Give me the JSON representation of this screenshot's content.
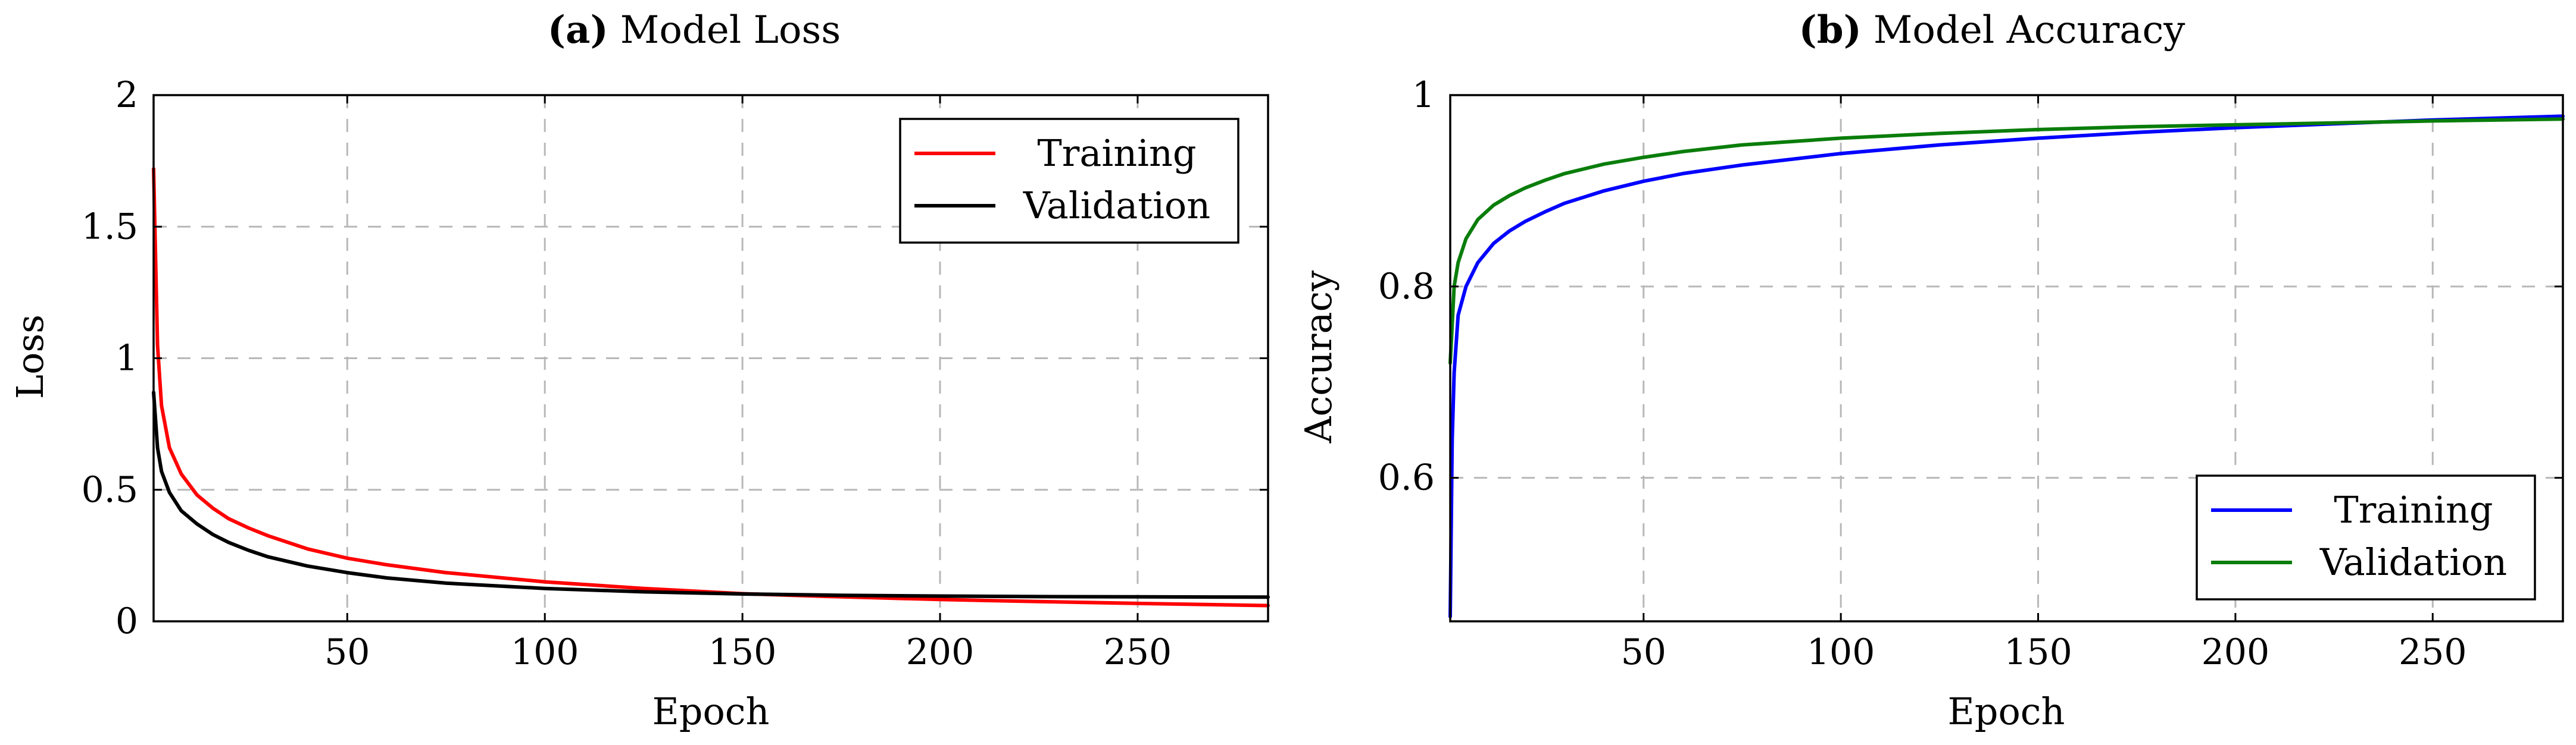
{
  "chart_data": [
    {
      "type": "line",
      "panel_label": "(a)",
      "title": "Model Loss",
      "xlabel": "Epoch",
      "ylabel": "Loss",
      "xlim": [
        1,
        283
      ],
      "ylim": [
        0,
        2
      ],
      "xticks": [
        50,
        100,
        150,
        200,
        250
      ],
      "xtick_labels": [
        "50",
        "100",
        "150",
        "200",
        "250"
      ],
      "yticks": [
        0,
        0.5,
        1,
        1.5,
        2
      ],
      "ytick_labels": [
        "0",
        "0.5",
        "1",
        "1.5",
        "2"
      ],
      "grid": true,
      "legend_position": "top-right",
      "series": [
        {
          "name": "Training",
          "color": "#ff0000",
          "x": [
            1,
            2,
            3,
            5,
            8,
            12,
            16,
            20,
            25,
            30,
            40,
            50,
            60,
            75,
            100,
            125,
            150,
            175,
            200,
            225,
            250,
            283
          ],
          "y": [
            1.72,
            1.05,
            0.82,
            0.66,
            0.56,
            0.48,
            0.43,
            0.39,
            0.355,
            0.325,
            0.275,
            0.24,
            0.215,
            0.185,
            0.15,
            0.125,
            0.105,
            0.093,
            0.083,
            0.075,
            0.068,
            0.06
          ]
        },
        {
          "name": "Validation",
          "color": "#000000",
          "x": [
            1,
            2,
            3,
            5,
            8,
            12,
            16,
            20,
            25,
            30,
            40,
            50,
            60,
            75,
            100,
            125,
            150,
            175,
            200,
            225,
            250,
            283
          ],
          "y": [
            0.87,
            0.66,
            0.57,
            0.49,
            0.42,
            0.37,
            0.33,
            0.3,
            0.27,
            0.245,
            0.21,
            0.185,
            0.165,
            0.145,
            0.125,
            0.112,
            0.104,
            0.099,
            0.096,
            0.094,
            0.093,
            0.092
          ]
        }
      ]
    },
    {
      "type": "line",
      "panel_label": "(b)",
      "title": "Model Accuracy",
      "xlabel": "Epoch",
      "ylabel": "Accuracy",
      "xlim": [
        1,
        283
      ],
      "ylim": [
        0.45,
        1
      ],
      "xticks": [
        50,
        100,
        150,
        200,
        250
      ],
      "xtick_labels": [
        "50",
        "100",
        "150",
        "200",
        "250"
      ],
      "yticks": [
        0.6,
        0.8,
        1
      ],
      "ytick_labels": [
        "0.6",
        "0.8",
        "1"
      ],
      "grid": true,
      "legend_position": "bottom-right",
      "series": [
        {
          "name": "Training",
          "color": "#0000ff",
          "x": [
            1,
            1.5,
            2,
            3,
            5,
            8,
            12,
            16,
            20,
            25,
            30,
            40,
            50,
            60,
            75,
            100,
            125,
            150,
            175,
            200,
            225,
            250,
            283
          ],
          "y": [
            0.455,
            0.64,
            0.71,
            0.77,
            0.8,
            0.825,
            0.845,
            0.858,
            0.868,
            0.878,
            0.887,
            0.9,
            0.91,
            0.918,
            0.927,
            0.939,
            0.948,
            0.955,
            0.961,
            0.966,
            0.97,
            0.974,
            0.978
          ]
        },
        {
          "name": "Validation",
          "color": "#0a7d0a",
          "x": [
            1,
            2,
            3,
            5,
            8,
            12,
            16,
            20,
            25,
            30,
            40,
            50,
            60,
            75,
            100,
            125,
            150,
            175,
            200,
            225,
            250,
            283
          ],
          "y": [
            0.72,
            0.8,
            0.825,
            0.85,
            0.87,
            0.885,
            0.895,
            0.903,
            0.911,
            0.918,
            0.928,
            0.935,
            0.941,
            0.948,
            0.955,
            0.96,
            0.964,
            0.967,
            0.969,
            0.971,
            0.973,
            0.975
          ]
        }
      ]
    }
  ]
}
